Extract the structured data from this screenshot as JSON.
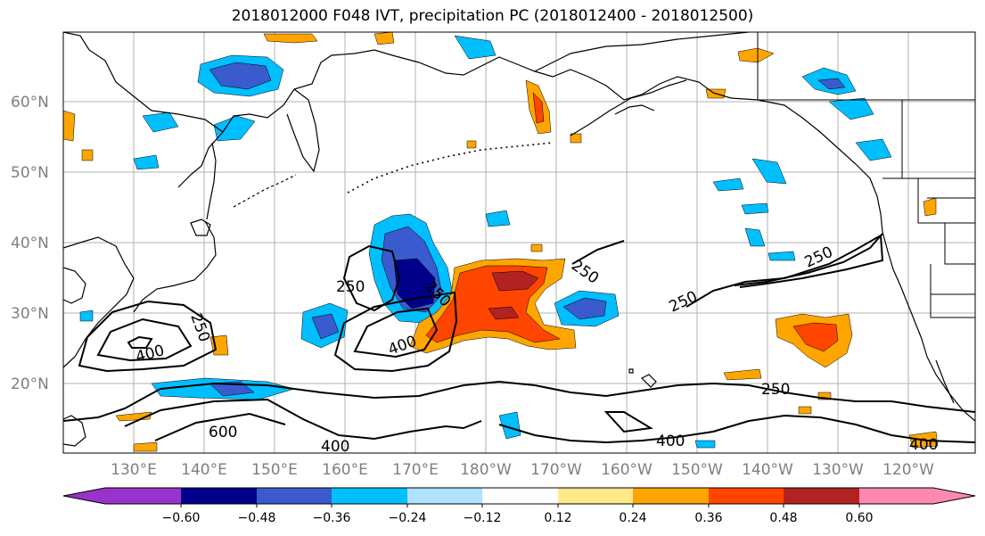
{
  "title": "2018012000 F048 IVT, precipitation PC (2018012400 - 2018012500)",
  "lat_labels": [
    "60°N",
    "50°N",
    "40°N",
    "30°N",
    "20°N"
  ],
  "lon_labels": [
    "130°E",
    "140°E",
    "150°E",
    "160°E",
    "170°E",
    "180°W",
    "170°W",
    "160°W",
    "150°W",
    "140°W",
    "130°W",
    "120°W"
  ],
  "ivt_contour_labels": [
    "250",
    "250",
    "250",
    "250",
    "250",
    "250",
    "250",
    "400",
    "400",
    "400",
    "400",
    "400",
    "600"
  ],
  "colorbar": {
    "ticks": [
      "−0.60",
      "−0.48",
      "−0.36",
      "−0.24",
      "−0.12",
      "0.12",
      "0.24",
      "0.36",
      "0.48",
      "0.60"
    ],
    "colors": [
      "#9932cc",
      "#00008b",
      "#3a5bcd",
      "#00bfff",
      "#b0e2ff",
      "#ffffff",
      "#ffe98b",
      "#ffa500",
      "#ff4500",
      "#b22222",
      "#ff88b0"
    ]
  },
  "colors": {
    "coast": "#000000",
    "grid": "#b0b0b0",
    "neg_strong": "#00008b",
    "neg_mid": "#3a5bcd",
    "neg_light": "#00bfff",
    "neg_pale": "#b0e2ff",
    "pos_pale": "#ffe98b",
    "pos_light": "#ffa500",
    "pos_mid": "#ff4500",
    "pos_strong": "#b22222"
  }
}
